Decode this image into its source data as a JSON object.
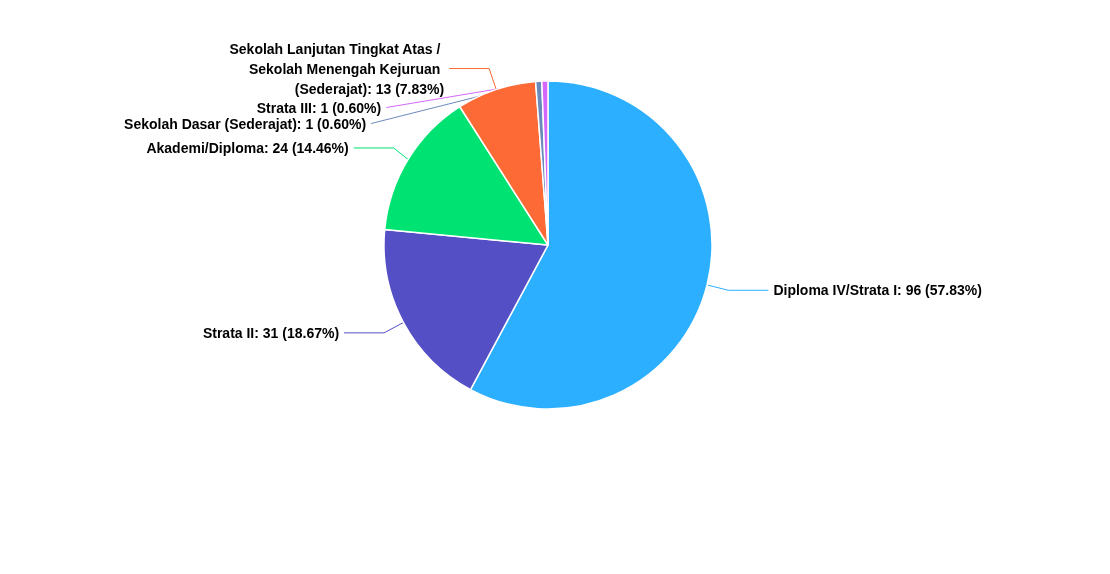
{
  "chart_data": {
    "type": "pie",
    "categories": [
      "Diploma IV/Strata I",
      "Strata II",
      "Akademi/Diploma",
      "Sekolah Lanjutan Tingkat Atas / Sekolah Menengah Kejuruan (Sederajat)",
      "Sekolah Dasar (Sederajat)",
      "Strata III"
    ],
    "values": [
      96,
      31,
      24,
      13,
      1,
      1
    ],
    "colors": [
      "#2caffe",
      "#544fc5",
      "#00e272",
      "#fe6a35",
      "#6b8abc",
      "#d568fb"
    ],
    "value_labels": [
      "96 (57.83%)",
      "31 (18.67%)",
      "24 (14.46%)",
      "13 (7.83%)",
      "1 (0.60%)",
      "1 (0.60%)"
    ]
  }
}
